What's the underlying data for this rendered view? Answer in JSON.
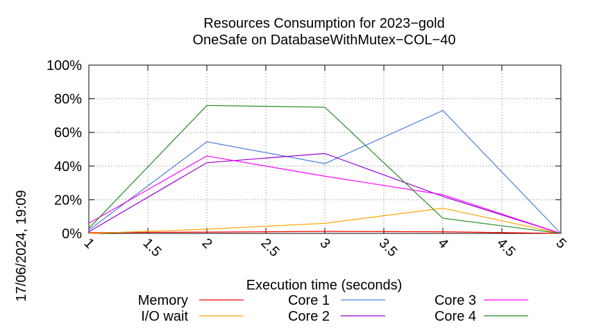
{
  "timestamp": "17/06/2024, 19:09",
  "chart_data": {
    "type": "line",
    "title": "Resources Consumption for 2023−gold",
    "subtitle": "OneSafe on DatabaseWithMutex−COL−40",
    "xlabel": "Execution time (seconds)",
    "ylabel": "",
    "xlim": [
      1,
      5
    ],
    "ylim": [
      0,
      100
    ],
    "x_ticks": [
      "1",
      "1.5",
      "2",
      "2.5",
      "3",
      "3.5",
      "4",
      "4.5",
      "5"
    ],
    "y_ticks": [
      "0%",
      "20%",
      "40%",
      "60%",
      "80%",
      "100%"
    ],
    "grid": true,
    "legend_position": "bottom",
    "x": [
      1,
      2,
      3,
      4,
      5
    ],
    "series": [
      {
        "name": "Memory",
        "color": "#ff0000",
        "values": [
          0.5,
          0.8,
          1.2,
          1.0,
          0
        ]
      },
      {
        "name": "I/O wait",
        "color": "#ffa500",
        "values": [
          0,
          2.5,
          6,
          15,
          0
        ]
      },
      {
        "name": "Core 1",
        "color": "#4a7ddb",
        "values": [
          2,
          54.5,
          41.5,
          73,
          0
        ]
      },
      {
        "name": "Core 2",
        "color": "#9400d3",
        "values": [
          1,
          42,
          47.5,
          22,
          0
        ]
      },
      {
        "name": "Core 3",
        "color": "#ff00ff",
        "values": [
          6,
          46,
          34,
          23,
          0
        ]
      },
      {
        "name": "Core 4",
        "color": "#228b22",
        "values": [
          3,
          76,
          75,
          9,
          0
        ]
      }
    ]
  }
}
